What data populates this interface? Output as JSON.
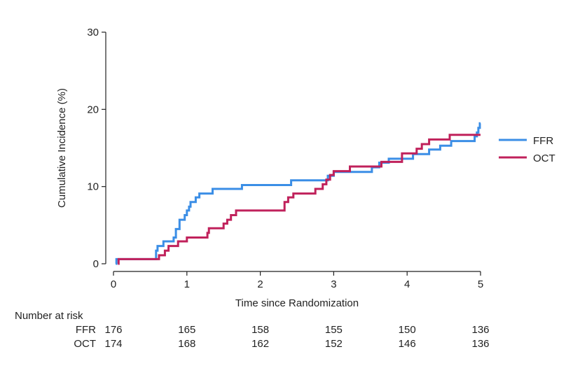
{
  "chart_data": {
    "type": "line",
    "title": "",
    "xlabel": "Time since Randomization",
    "ylabel": "Cumulative Incidence (%)",
    "xlim": [
      0,
      5
    ],
    "ylim": [
      0,
      30
    ],
    "xticks": [
      0,
      1,
      2,
      3,
      4,
      5
    ],
    "yticks": [
      0,
      10,
      20,
      30
    ],
    "xtick_labels": [
      "0",
      "1",
      "2",
      "3",
      "4",
      "5"
    ],
    "ytick_labels": [
      "0",
      "10",
      "20",
      "30"
    ],
    "grid": false,
    "legend_position": "right",
    "step": true,
    "series": [
      {
        "name": "FFR",
        "color": "#3b8ee6",
        "points": [
          [
            0.03,
            0
          ],
          [
            0.04,
            0.6
          ],
          [
            0.57,
            0.6
          ],
          [
            0.58,
            1.7
          ],
          [
            0.6,
            2.3
          ],
          [
            0.68,
            2.9
          ],
          [
            0.8,
            2.9
          ],
          [
            0.82,
            3.4
          ],
          [
            0.85,
            4.5
          ],
          [
            0.9,
            5.7
          ],
          [
            0.97,
            6.3
          ],
          [
            1.0,
            6.9
          ],
          [
            1.03,
            7.4
          ],
          [
            1.05,
            8.0
          ],
          [
            1.12,
            8.6
          ],
          [
            1.17,
            9.1
          ],
          [
            1.35,
            9.7
          ],
          [
            1.75,
            10.2
          ],
          [
            2.4,
            10.2
          ],
          [
            2.42,
            10.8
          ],
          [
            2.9,
            10.8
          ],
          [
            2.92,
            11.4
          ],
          [
            3.0,
            11.9
          ],
          [
            3.5,
            11.9
          ],
          [
            3.52,
            12.5
          ],
          [
            3.6,
            12.5
          ],
          [
            3.62,
            13.1
          ],
          [
            3.75,
            13.6
          ],
          [
            4.05,
            13.6
          ],
          [
            4.08,
            14.2
          ],
          [
            4.3,
            14.8
          ],
          [
            4.45,
            15.3
          ],
          [
            4.6,
            15.9
          ],
          [
            4.9,
            15.9
          ],
          [
            4.92,
            16.5
          ],
          [
            4.95,
            17.0
          ],
          [
            4.97,
            17.6
          ],
          [
            4.99,
            18.2
          ],
          [
            5.0,
            18.2
          ]
        ]
      },
      {
        "name": "OCT",
        "color": "#c0215b",
        "points": [
          [
            0.06,
            0
          ],
          [
            0.07,
            0.6
          ],
          [
            0.6,
            0.6
          ],
          [
            0.62,
            1.1
          ],
          [
            0.7,
            1.7
          ],
          [
            0.75,
            2.3
          ],
          [
            0.88,
            2.9
          ],
          [
            1.0,
            3.4
          ],
          [
            1.25,
            3.4
          ],
          [
            1.28,
            4.0
          ],
          [
            1.3,
            4.6
          ],
          [
            1.45,
            4.6
          ],
          [
            1.5,
            5.2
          ],
          [
            1.55,
            5.7
          ],
          [
            1.6,
            6.3
          ],
          [
            1.67,
            6.9
          ],
          [
            2.3,
            6.9
          ],
          [
            2.33,
            8.0
          ],
          [
            2.38,
            8.6
          ],
          [
            2.45,
            9.1
          ],
          [
            2.7,
            9.1
          ],
          [
            2.75,
            9.7
          ],
          [
            2.85,
            10.3
          ],
          [
            2.9,
            10.9
          ],
          [
            2.95,
            11.5
          ],
          [
            3.0,
            12.0
          ],
          [
            3.2,
            12.0
          ],
          [
            3.22,
            12.6
          ],
          [
            3.6,
            12.6
          ],
          [
            3.65,
            13.2
          ],
          [
            3.9,
            13.2
          ],
          [
            3.93,
            14.3
          ],
          [
            4.1,
            14.3
          ],
          [
            4.13,
            14.9
          ],
          [
            4.2,
            15.5
          ],
          [
            4.3,
            16.1
          ],
          [
            4.55,
            16.1
          ],
          [
            4.58,
            16.7
          ],
          [
            5.0,
            16.7
          ]
        ]
      }
    ],
    "risk_table": {
      "header": "Number at risk",
      "times": [
        0,
        1,
        2,
        3,
        4,
        5
      ],
      "rows": [
        {
          "label": "FFR",
          "values": [
            "176",
            "165",
            "158",
            "155",
            "150",
            "136"
          ]
        },
        {
          "label": "OCT",
          "values": [
            "174",
            "168",
            "162",
            "152",
            "146",
            "136"
          ]
        }
      ]
    }
  }
}
